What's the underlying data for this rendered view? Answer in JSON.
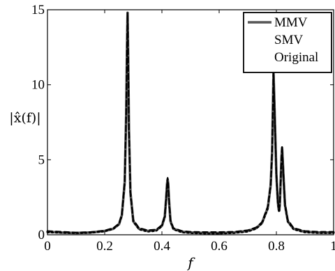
{
  "chart_data": {
    "type": "line",
    "xlabel": "f",
    "ylabel": "|x̂(f)|",
    "xlim": [
      0,
      1
    ],
    "ylim": [
      0,
      15
    ],
    "xticks": [
      "0",
      "0.2",
      "0.4",
      "0.6",
      "0.8",
      "1"
    ],
    "yticks": [
      "0",
      "5",
      "10",
      "15"
    ],
    "grid": false,
    "legend_position": "top-right",
    "series": [
      {
        "name": "MMV",
        "style": "solid",
        "color": "#555555",
        "x": [
          0,
          0.05,
          0.1,
          0.15,
          0.2,
          0.23,
          0.25,
          0.26,
          0.27,
          0.275,
          0.278,
          0.28,
          0.282,
          0.285,
          0.29,
          0.3,
          0.32,
          0.35,
          0.38,
          0.4,
          0.41,
          0.415,
          0.418,
          0.42,
          0.422,
          0.425,
          0.43,
          0.44,
          0.47,
          0.5,
          0.55,
          0.6,
          0.65,
          0.7,
          0.73,
          0.75,
          0.77,
          0.78,
          0.785,
          0.79,
          0.795,
          0.8,
          0.805,
          0.808,
          0.81,
          0.812,
          0.815,
          0.818,
          0.82,
          0.825,
          0.83,
          0.84,
          0.86,
          0.9,
          0.95,
          1.0
        ],
        "values": [
          0.2,
          0.15,
          0.12,
          0.15,
          0.25,
          0.4,
          0.7,
          1.3,
          3.5,
          8.0,
          12.5,
          14.8,
          12.0,
          7.0,
          2.8,
          0.9,
          0.4,
          0.25,
          0.3,
          0.6,
          1.2,
          2.5,
          3.4,
          3.7,
          3.4,
          2.2,
          0.9,
          0.4,
          0.2,
          0.15,
          0.12,
          0.12,
          0.15,
          0.25,
          0.45,
          0.8,
          1.8,
          3.3,
          5.5,
          10.8,
          7.5,
          4.0,
          2.2,
          1.7,
          1.6,
          2.0,
          3.5,
          5.2,
          5.8,
          3.8,
          2.0,
          0.9,
          0.4,
          0.2,
          0.15,
          0.15
        ]
      },
      {
        "name": "SMV",
        "style": "dashed",
        "color": "#000000",
        "x": [
          0,
          0.05,
          0.1,
          0.15,
          0.2,
          0.23,
          0.25,
          0.26,
          0.27,
          0.275,
          0.278,
          0.28,
          0.282,
          0.285,
          0.29,
          0.3,
          0.32,
          0.35,
          0.38,
          0.4,
          0.41,
          0.415,
          0.418,
          0.42,
          0.422,
          0.425,
          0.43,
          0.44,
          0.47,
          0.5,
          0.55,
          0.6,
          0.65,
          0.7,
          0.73,
          0.75,
          0.77,
          0.78,
          0.785,
          0.79,
          0.795,
          0.8,
          0.805,
          0.808,
          0.81,
          0.812,
          0.815,
          0.818,
          0.82,
          0.825,
          0.83,
          0.84,
          0.86,
          0.9,
          0.95,
          1.0
        ],
        "values": [
          0.25,
          0.2,
          0.15,
          0.18,
          0.28,
          0.45,
          0.75,
          1.4,
          3.6,
          8.1,
          12.6,
          14.7,
          12.1,
          7.1,
          2.9,
          1.0,
          0.45,
          0.3,
          0.35,
          0.65,
          1.3,
          2.6,
          3.5,
          3.8,
          3.5,
          2.3,
          1.0,
          0.45,
          0.25,
          0.2,
          0.18,
          0.18,
          0.2,
          0.3,
          0.5,
          0.85,
          1.9,
          3.4,
          5.6,
          10.9,
          7.6,
          4.1,
          2.3,
          1.8,
          1.7,
          2.1,
          3.6,
          5.3,
          5.9,
          3.9,
          2.1,
          1.0,
          0.45,
          0.25,
          0.2,
          0.2
        ]
      },
      {
        "name": "Original",
        "style": "dotted",
        "color": "#000000",
        "x": [
          0,
          0.05,
          0.1,
          0.15,
          0.2,
          0.23,
          0.25,
          0.26,
          0.27,
          0.275,
          0.278,
          0.28,
          0.282,
          0.285,
          0.29,
          0.3,
          0.32,
          0.35,
          0.38,
          0.4,
          0.41,
          0.415,
          0.418,
          0.42,
          0.422,
          0.425,
          0.43,
          0.44,
          0.47,
          0.5,
          0.55,
          0.6,
          0.65,
          0.7,
          0.73,
          0.75,
          0.77,
          0.78,
          0.785,
          0.79,
          0.795,
          0.8,
          0.805,
          0.808,
          0.81,
          0.812,
          0.815,
          0.818,
          0.82,
          0.825,
          0.83,
          0.84,
          0.86,
          0.9,
          0.95,
          1.0
        ],
        "values": [
          0.15,
          0.12,
          0.1,
          0.12,
          0.22,
          0.38,
          0.68,
          1.25,
          3.4,
          7.9,
          12.4,
          14.8,
          11.9,
          6.9,
          2.7,
          0.85,
          0.35,
          0.2,
          0.25,
          0.55,
          1.15,
          2.4,
          3.3,
          3.6,
          3.3,
          2.1,
          0.85,
          0.35,
          0.15,
          0.1,
          0.08,
          0.08,
          0.1,
          0.2,
          0.4,
          0.75,
          1.7,
          3.2,
          5.4,
          10.7,
          7.4,
          3.9,
          2.1,
          1.6,
          1.5,
          1.9,
          3.4,
          5.1,
          5.7,
          3.7,
          1.9,
          0.85,
          0.35,
          0.15,
          0.1,
          0.1
        ]
      }
    ]
  }
}
